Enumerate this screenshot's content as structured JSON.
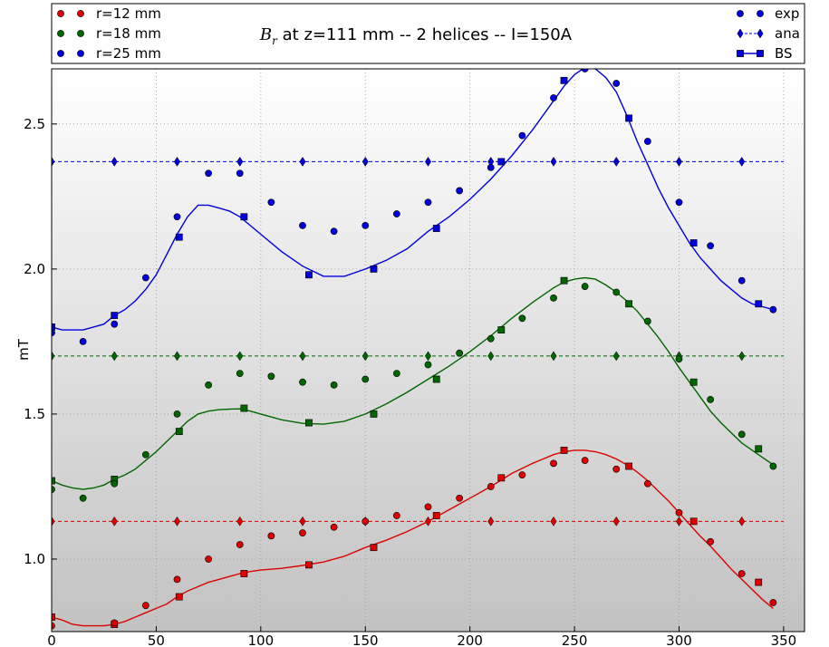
{
  "chart_data": {
    "type": "scatter",
    "title_symbol": "B",
    "title_subscript": "r",
    "title_rest": " at z=111 mm -- 2 helices -- I=150A",
    "xlabel": "",
    "ylabel": "mT",
    "xlim": [
      0,
      360
    ],
    "ylim": [
      0.75,
      2.69
    ],
    "xticks": [
      0,
      50,
      100,
      150,
      200,
      250,
      300,
      350
    ],
    "yticks": [
      1.0,
      1.5,
      2.0,
      2.5
    ],
    "ytick_labels": [
      "1.0",
      "1.5",
      "2.0",
      "2.5"
    ],
    "grid": true,
    "background": "gradient-gray",
    "legend_left": {
      "placement": "top-left",
      "entries": [
        {
          "label": "r=12 mm",
          "color": "#dd0000"
        },
        {
          "label": "r=18 mm",
          "color": "#006600"
        },
        {
          "label": "r=25 mm",
          "color": "#0000dd"
        }
      ]
    },
    "legend_right": {
      "placement": "top-right",
      "entries": [
        {
          "label": "exp",
          "marker": "circle",
          "line": "none"
        },
        {
          "label": "ana",
          "marker": "diamond",
          "line": "dashed"
        },
        {
          "label": "BS",
          "marker": "square",
          "line": "solid"
        }
      ]
    },
    "series": [
      {
        "radius": "r=12 mm",
        "color": "#dd0000",
        "exp": {
          "x": [
            0,
            15,
            30,
            45,
            60,
            75,
            90,
            105,
            120,
            135,
            150,
            165,
            180,
            195,
            210,
            225,
            240,
            255,
            270,
            285,
            300,
            315,
            330,
            345
          ],
          "y": [
            0.77,
            0.73,
            0.78,
            0.84,
            0.93,
            1.0,
            1.05,
            1.08,
            1.09,
            1.11,
            1.13,
            1.15,
            1.18,
            1.21,
            1.25,
            1.29,
            1.33,
            1.34,
            1.31,
            1.26,
            1.16,
            1.06,
            0.95,
            0.85
          ]
        },
        "ana": {
          "x": [
            0,
            30,
            60,
            90,
            120,
            150,
            180,
            210,
            240,
            270,
            300,
            330
          ],
          "y": [
            1.13,
            1.13,
            1.13,
            1.13,
            1.13,
            1.13,
            1.13,
            1.13,
            1.13,
            1.13,
            1.13,
            1.13
          ]
        },
        "bs_curve": {
          "x": [
            0,
            5,
            10,
            15,
            20,
            25,
            30,
            35,
            40,
            45,
            50,
            55,
            60,
            65,
            70,
            75,
            80,
            85,
            90,
            95,
            100,
            110,
            120,
            130,
            140,
            150,
            160,
            170,
            180,
            190,
            200,
            210,
            220,
            230,
            240,
            245,
            250,
            255,
            260,
            265,
            270,
            275,
            280,
            285,
            290,
            295,
            300,
            305,
            310,
            315,
            320,
            325,
            330,
            335,
            340,
            345
          ],
          "y": [
            0.8,
            0.79,
            0.775,
            0.77,
            0.77,
            0.77,
            0.775,
            0.785,
            0.8,
            0.815,
            0.83,
            0.845,
            0.87,
            0.89,
            0.905,
            0.92,
            0.93,
            0.94,
            0.95,
            0.957,
            0.962,
            0.968,
            0.978,
            0.99,
            1.01,
            1.04,
            1.065,
            1.095,
            1.13,
            1.17,
            1.21,
            1.25,
            1.295,
            1.33,
            1.36,
            1.37,
            1.375,
            1.375,
            1.37,
            1.36,
            1.345,
            1.325,
            1.3,
            1.27,
            1.235,
            1.2,
            1.16,
            1.12,
            1.08,
            1.045,
            1.005,
            0.965,
            0.93,
            0.895,
            0.86,
            0.83
          ]
        },
        "bs_markers": {
          "x": [
            0,
            30,
            61,
            92,
            123,
            154,
            184,
            215,
            245,
            276,
            307,
            338
          ],
          "y": [
            0.8,
            0.775,
            0.87,
            0.95,
            0.98,
            1.04,
            1.15,
            1.28,
            1.375,
            1.32,
            1.13,
            0.92
          ]
        }
      },
      {
        "radius": "r=18 mm",
        "color": "#006600",
        "exp": {
          "x": [
            0,
            15,
            30,
            45,
            60,
            75,
            90,
            105,
            120,
            135,
            150,
            165,
            180,
            195,
            210,
            225,
            240,
            255,
            270,
            285,
            300,
            315,
            330,
            345
          ],
          "y": [
            1.24,
            1.21,
            1.26,
            1.36,
            1.5,
            1.6,
            1.64,
            1.63,
            1.61,
            1.6,
            1.62,
            1.64,
            1.67,
            1.71,
            1.76,
            1.83,
            1.9,
            1.94,
            1.92,
            1.82,
            1.69,
            1.55,
            1.43,
            1.32
          ]
        },
        "ana": {
          "x": [
            0,
            30,
            60,
            90,
            120,
            150,
            180,
            210,
            240,
            270,
            300,
            330
          ],
          "y": [
            1.7,
            1.7,
            1.7,
            1.7,
            1.7,
            1.7,
            1.7,
            1.7,
            1.7,
            1.7,
            1.7,
            1.7
          ]
        },
        "bs_curve": {
          "x": [
            0,
            5,
            10,
            15,
            20,
            25,
            30,
            35,
            40,
            45,
            50,
            55,
            60,
            65,
            70,
            75,
            80,
            85,
            90,
            95,
            100,
            110,
            120,
            130,
            140,
            150,
            160,
            170,
            180,
            190,
            200,
            210,
            220,
            230,
            240,
            245,
            250,
            255,
            260,
            265,
            270,
            275,
            280,
            285,
            290,
            295,
            300,
            305,
            310,
            315,
            320,
            325,
            330,
            335,
            340,
            345
          ],
          "y": [
            1.27,
            1.255,
            1.245,
            1.24,
            1.245,
            1.255,
            1.275,
            1.29,
            1.31,
            1.34,
            1.37,
            1.405,
            1.44,
            1.475,
            1.5,
            1.51,
            1.515,
            1.517,
            1.518,
            1.51,
            1.5,
            1.48,
            1.468,
            1.465,
            1.475,
            1.5,
            1.535,
            1.575,
            1.62,
            1.665,
            1.715,
            1.77,
            1.83,
            1.885,
            1.935,
            1.955,
            1.965,
            1.97,
            1.965,
            1.945,
            1.92,
            1.89,
            1.855,
            1.81,
            1.765,
            1.715,
            1.66,
            1.61,
            1.56,
            1.51,
            1.47,
            1.435,
            1.4,
            1.375,
            1.35,
            1.325
          ]
        },
        "bs_markers": {
          "x": [
            0,
            30,
            61,
            92,
            123,
            154,
            184,
            215,
            245,
            276,
            307,
            338
          ],
          "y": [
            1.27,
            1.275,
            1.44,
            1.52,
            1.47,
            1.5,
            1.62,
            1.79,
            1.96,
            1.88,
            1.61,
            1.38
          ]
        }
      },
      {
        "radius": "r=25 mm",
        "color": "#0000dd",
        "exp": {
          "x": [
            0,
            15,
            30,
            45,
            60,
            75,
            90,
            105,
            120,
            135,
            150,
            165,
            180,
            195,
            210,
            225,
            240,
            255,
            270,
            285,
            300,
            315,
            330,
            345
          ],
          "y": [
            1.78,
            1.75,
            1.81,
            1.97,
            2.18,
            2.33,
            2.33,
            2.23,
            2.15,
            2.13,
            2.15,
            2.19,
            2.23,
            2.27,
            2.35,
            2.46,
            2.59,
            2.69,
            2.64,
            2.44,
            2.23,
            2.08,
            1.96,
            1.86
          ]
        },
        "ana": {
          "x": [
            0,
            30,
            60,
            90,
            120,
            150,
            180,
            210,
            240,
            270,
            300,
            330
          ],
          "y": [
            2.37,
            2.37,
            2.37,
            2.37,
            2.37,
            2.37,
            2.37,
            2.37,
            2.37,
            2.37,
            2.37,
            2.37
          ]
        },
        "bs_curve": {
          "x": [
            0,
            5,
            10,
            15,
            20,
            25,
            30,
            35,
            40,
            45,
            50,
            55,
            60,
            65,
            70,
            75,
            80,
            85,
            90,
            95,
            100,
            110,
            120,
            130,
            140,
            150,
            160,
            170,
            180,
            190,
            200,
            210,
            220,
            230,
            240,
            245,
            250,
            255,
            260,
            265,
            270,
            275,
            280,
            285,
            290,
            295,
            300,
            305,
            310,
            315,
            320,
            325,
            330,
            335,
            340,
            345
          ],
          "y": [
            1.8,
            1.79,
            1.79,
            1.79,
            1.8,
            1.81,
            1.84,
            1.86,
            1.89,
            1.93,
            1.98,
            2.05,
            2.12,
            2.18,
            2.22,
            2.22,
            2.21,
            2.2,
            2.18,
            2.15,
            2.12,
            2.06,
            2.01,
            1.975,
            1.975,
            2.0,
            2.03,
            2.07,
            2.13,
            2.18,
            2.24,
            2.31,
            2.39,
            2.48,
            2.58,
            2.63,
            2.67,
            2.695,
            2.69,
            2.66,
            2.61,
            2.53,
            2.44,
            2.36,
            2.28,
            2.21,
            2.15,
            2.09,
            2.04,
            2.0,
            1.96,
            1.93,
            1.9,
            1.88,
            1.87,
            1.86
          ]
        },
        "bs_markers": {
          "x": [
            0,
            30,
            61,
            92,
            123,
            154,
            184,
            215,
            245,
            276,
            307,
            338
          ],
          "y": [
            1.8,
            1.84,
            2.11,
            2.18,
            1.98,
            2.0,
            2.14,
            2.37,
            2.65,
            2.52,
            2.09,
            1.88
          ]
        }
      }
    ]
  }
}
